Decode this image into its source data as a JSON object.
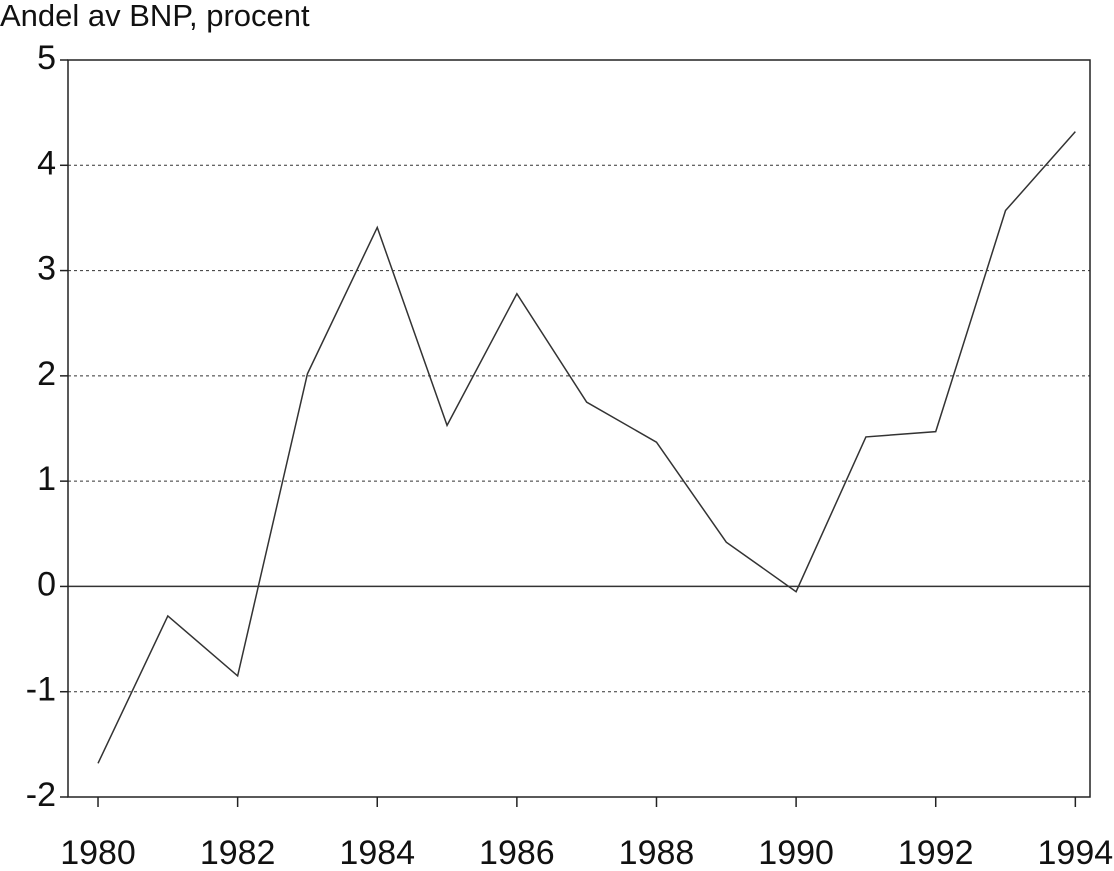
{
  "chart_data": {
    "type": "line",
    "title": "Andel av BNP, procent",
    "x": [
      1980,
      1981,
      1982,
      1983,
      1984,
      1985,
      1986,
      1987,
      1988,
      1989,
      1990,
      1991,
      1992,
      1993,
      1994
    ],
    "series": [
      {
        "color": "#333333",
        "values": [
          -1.68,
          -0.28,
          -0.85,
          2.02,
          3.41,
          1.53,
          2.78,
          1.75,
          1.37,
          0.42,
          -0.05,
          1.42,
          1.47,
          3.57,
          4.32
        ]
      }
    ],
    "xlim": [
      1979.57,
      1994.21
    ],
    "xticks": [
      1980,
      1982,
      1984,
      1986,
      1988,
      1990,
      1992,
      1994
    ],
    "ylim": [
      -2,
      5
    ],
    "yticks": [
      -2,
      -1,
      0,
      1,
      2,
      3,
      4,
      5
    ],
    "grid": true
  }
}
